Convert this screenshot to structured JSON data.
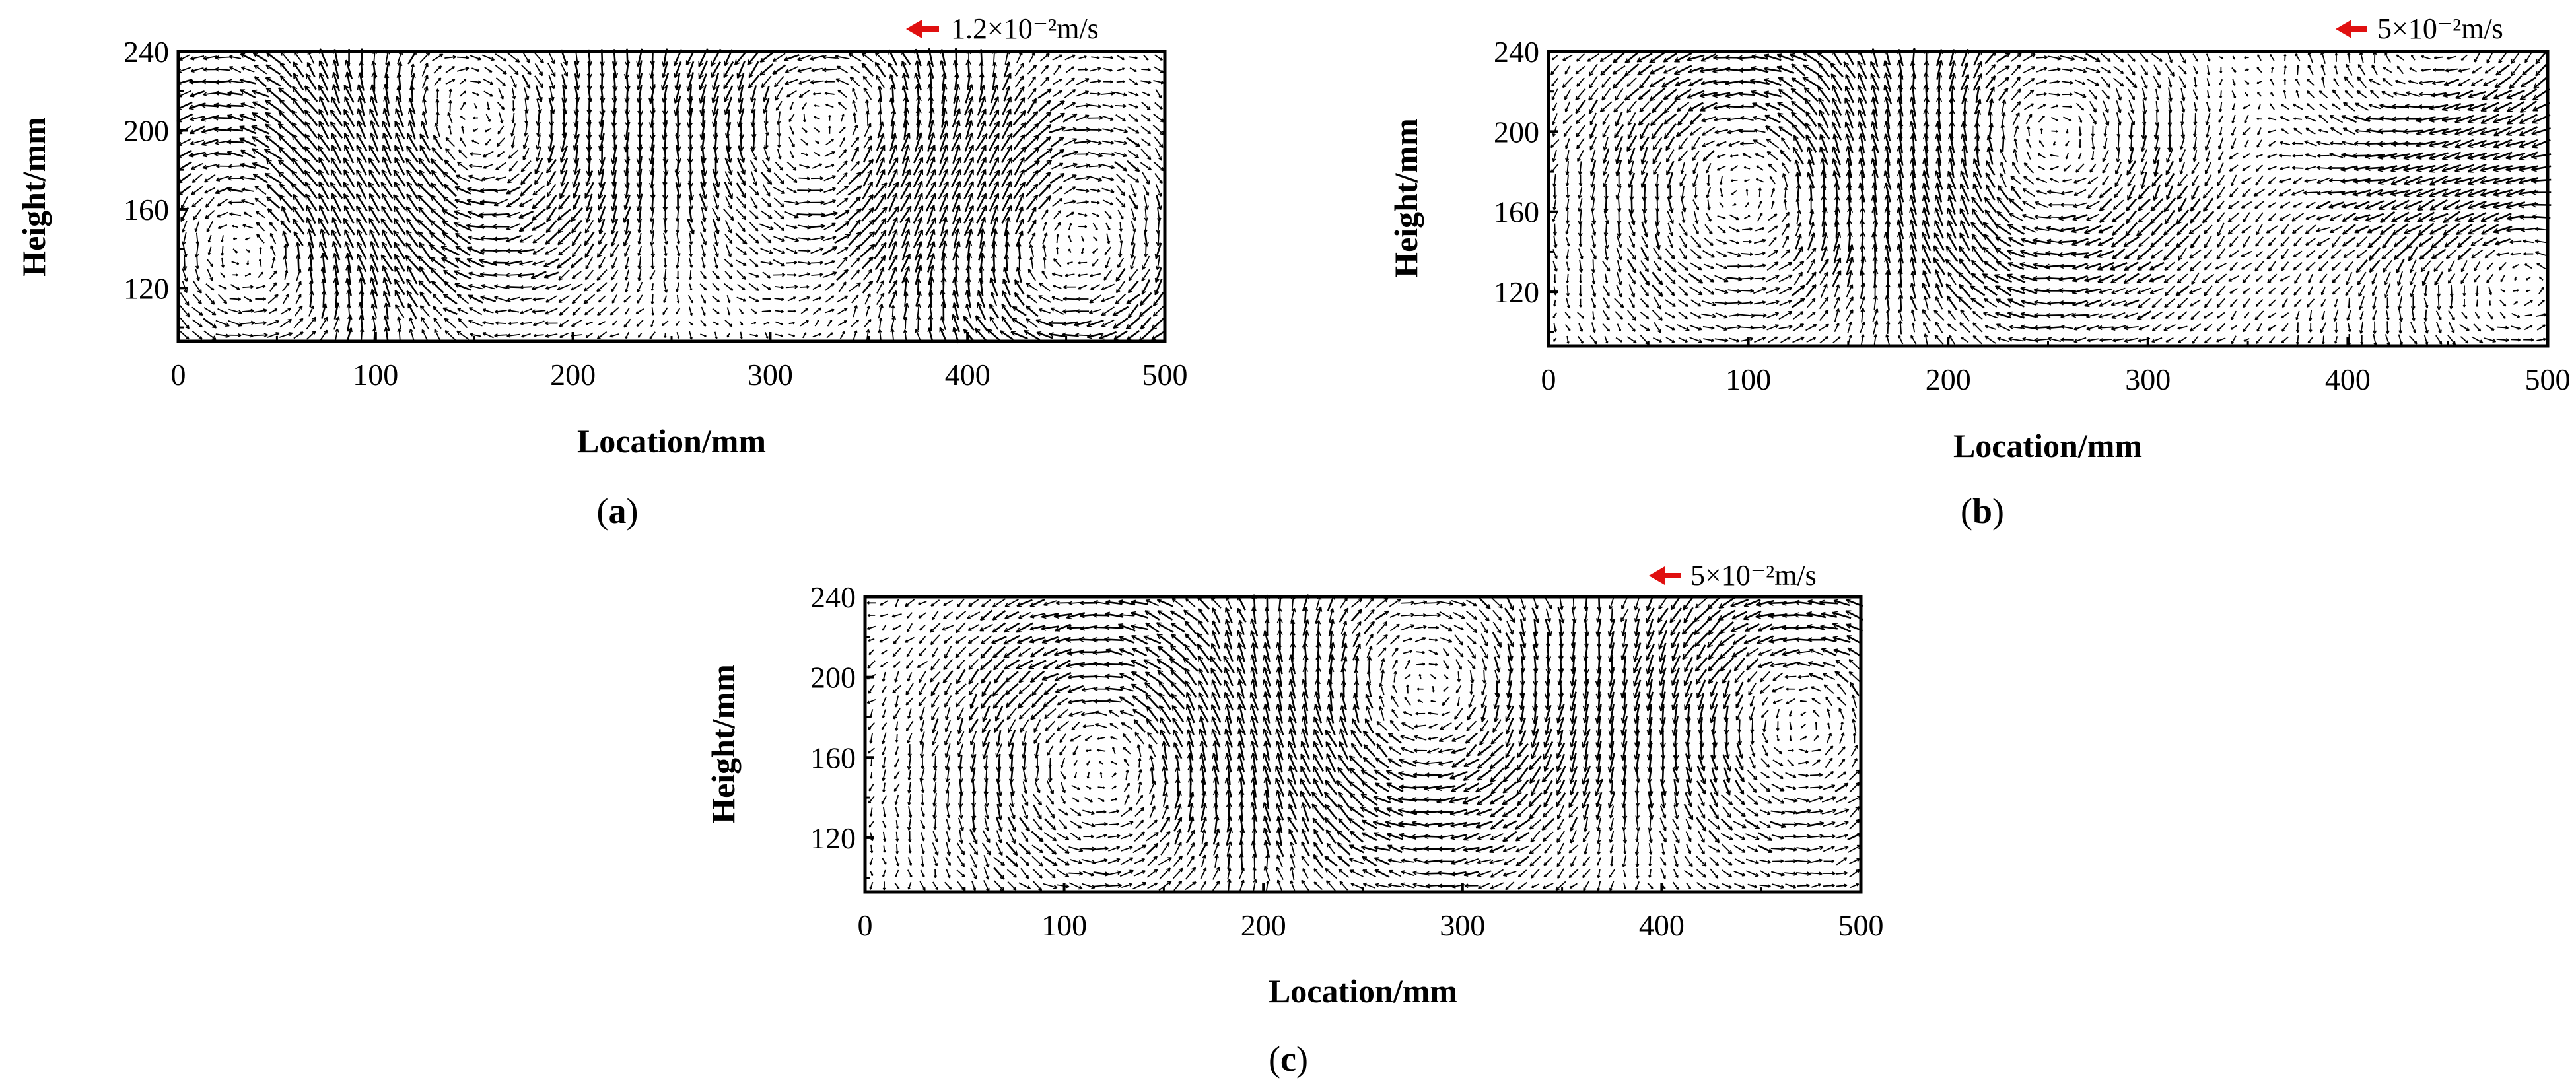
{
  "figure": {
    "panels": [
      {
        "id": "a",
        "label_open": "(",
        "label_letter": "a",
        "label_close": ")",
        "reference_vector": "1.2×10⁻²m/s"
      },
      {
        "id": "b",
        "label_open": "(",
        "label_letter": "b",
        "label_close": ")",
        "reference_vector": "5×10⁻²m/s"
      },
      {
        "id": "c",
        "label_open": "(",
        "label_letter": "c",
        "label_close": ")",
        "reference_vector": "5×10⁻²m/s"
      }
    ]
  },
  "chart_data": [
    {
      "type": "vector-field",
      "panel": "a",
      "xlabel": "Location/mm",
      "ylabel": "Height/mm",
      "xlim": [
        0,
        500
      ],
      "ylim": [
        93,
        240
      ],
      "xticks": [
        "0",
        "100",
        "200",
        "300",
        "400",
        "500"
      ],
      "yticks": [
        "120",
        "160",
        "200",
        "240"
      ],
      "reference_vector": "1.2×10⁻²m/s",
      "reference_color": "#e01010",
      "grid": false,
      "vortices": [
        {
          "x": 45,
          "y": 150,
          "sense": "ccw"
        },
        {
          "x": 140,
          "y": 195,
          "sense": "cw"
        },
        {
          "x": 330,
          "y": 205,
          "sense": "ccw"
        },
        {
          "x": 450,
          "y": 140,
          "sense": "cw"
        }
      ]
    },
    {
      "type": "vector-field",
      "panel": "b",
      "xlabel": "Location/mm",
      "ylabel": "Height/mm",
      "xlim": [
        0,
        500
      ],
      "ylim": [
        93,
        240
      ],
      "xticks": [
        "0",
        "100",
        "200",
        "300",
        "400",
        "500"
      ],
      "yticks": [
        "120",
        "160",
        "200",
        "240"
      ],
      "reference_vector": "5×10⁻²m/s",
      "reference_color": "#e01010",
      "grid": false,
      "vortices": [
        {
          "x": 100,
          "y": 175,
          "sense": "ccw"
        },
        {
          "x": 250,
          "y": 190,
          "sense": "cw"
        },
        {
          "x": 455,
          "y": 220,
          "sense": "cw"
        },
        {
          "x": 480,
          "y": 150,
          "sense": "ccw"
        }
      ]
    },
    {
      "type": "vector-field",
      "panel": "c",
      "xlabel": "Location/mm",
      "ylabel": "Height/mm",
      "xlim": [
        0,
        500
      ],
      "ylim": [
        93,
        240
      ],
      "xticks": [
        "0",
        "100",
        "200",
        "300",
        "400",
        "500"
      ],
      "yticks": [
        "120",
        "160",
        "200",
        "240"
      ],
      "reference_vector": "5×10⁻²m/s",
      "reference_color": "#e01010",
      "grid": false,
      "vortices": [
        {
          "x": 120,
          "y": 160,
          "sense": "ccw"
        },
        {
          "x": 280,
          "y": 190,
          "sense": "cw"
        },
        {
          "x": 470,
          "y": 180,
          "sense": "ccw"
        }
      ]
    }
  ]
}
